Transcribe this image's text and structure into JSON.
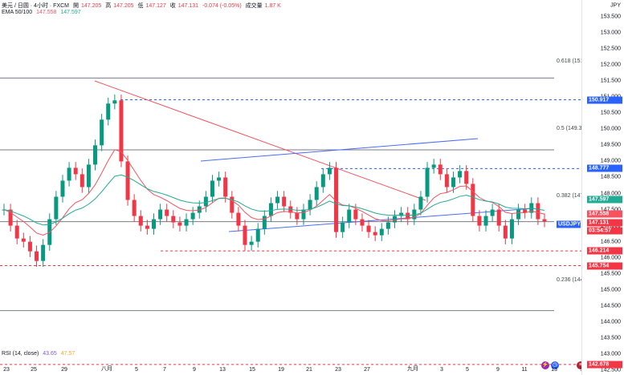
{
  "header": {
    "symbol_line": "美元 / 日圆 · 4小时 · FXCM",
    "open_label": "開",
    "open": "147.205",
    "high_label": "高",
    "high": "147.205",
    "low_label": "低",
    "low": "147.127",
    "close_label": "收",
    "close": "147.131",
    "change": "-0.074 (-0.05%)",
    "volume_label": "成交量",
    "volume": "1.87 K",
    "ema_label": "EMA 50/100",
    "ema50": "147.558",
    "ema100": "147.597"
  },
  "currency": "JPY",
  "price_ticks": [
    "153.500",
    "153.000",
    "152.500",
    "152.000",
    "151.500",
    "151.000",
    "150.500",
    "150.000",
    "149.500",
    "149.000",
    "148.500",
    "148.000",
    "147.500",
    "147.000",
    "146.500",
    "146.000",
    "145.500",
    "145.000",
    "144.500",
    "144.000",
    "143.500",
    "143.000",
    "142.500"
  ],
  "badges": [
    {
      "text": "150.917",
      "color": "#2962ff"
    },
    {
      "text": "148.777",
      "color": "#2962ff"
    },
    {
      "text": "147.597",
      "color": "#22ab94"
    },
    {
      "text": "147.558",
      "color": "#f7525f"
    },
    {
      "text": "147.131",
      "color": "#f23645"
    },
    {
      "text": "03:54:57",
      "color": "#f23645"
    },
    {
      "text": "USDJPY",
      "color": "#2962ff"
    },
    {
      "text": "146.214",
      "color": "#f23645"
    },
    {
      "text": "145.754",
      "color": "#f23645"
    },
    {
      "text": "142.678",
      "color": "#f23645"
    }
  ],
  "fib_labels": [
    "0.618 (151.596)",
    "0.5 (149.359)",
    "0.382 (147.123)",
    "0.236 (144.356)"
  ],
  "x_ticks": [
    "23",
    "25",
    "29",
    "八月",
    "5",
    "7",
    "9",
    "13",
    "15",
    "19",
    "21",
    "23",
    "27",
    "九月",
    "3",
    "5",
    "9",
    "11",
    "13",
    "17"
  ],
  "rsi": {
    "label": "RSI (14, close)",
    "value1": "43.65",
    "value2": "47.57"
  },
  "colors": {
    "up": "#089981",
    "down": "#f23645",
    "ema50": "#f7525f",
    "ema100": "#22ab94",
    "trend": "#4a6cf7"
  },
  "chart_data": {
    "type": "candlestick",
    "symbol": "USDJPY",
    "timeframe": "4h",
    "ylim": [
      142.5,
      153.8
    ],
    "levels": [
      151.596,
      150.917,
      149.359,
      148.777,
      147.123,
      146.214,
      145.754,
      144.356,
      142.678
    ],
    "close_series": [
      147.5,
      147.0,
      146.6,
      146.5,
      146.2,
      145.9,
      146.4,
      147.2,
      147.9,
      148.4,
      148.8,
      148.6,
      148.2,
      148.9,
      149.5,
      150.3,
      150.8,
      150.9,
      149.0,
      147.8,
      147.3,
      147.0,
      146.9,
      147.2,
      147.5,
      147.3,
      147.1,
      147.0,
      147.2,
      147.4,
      147.6,
      147.9,
      148.4,
      148.5,
      147.9,
      147.4,
      147.0,
      146.4,
      146.5,
      146.9,
      147.3,
      147.7,
      147.9,
      147.6,
      147.4,
      147.2,
      147.5,
      147.8,
      148.2,
      148.6,
      148.8,
      146.8,
      147.1,
      147.5,
      147.2,
      147.0,
      146.8,
      146.7,
      146.9,
      147.1,
      147.3,
      147.4,
      147.2,
      147.5,
      147.9,
      148.8,
      148.9,
      148.6,
      148.2,
      148.5,
      148.7,
      148.3,
      147.3,
      147.0,
      147.3,
      147.5,
      147.0,
      146.6,
      147.2,
      147.5,
      147.4,
      147.7,
      147.2,
      147.131
    ]
  }
}
